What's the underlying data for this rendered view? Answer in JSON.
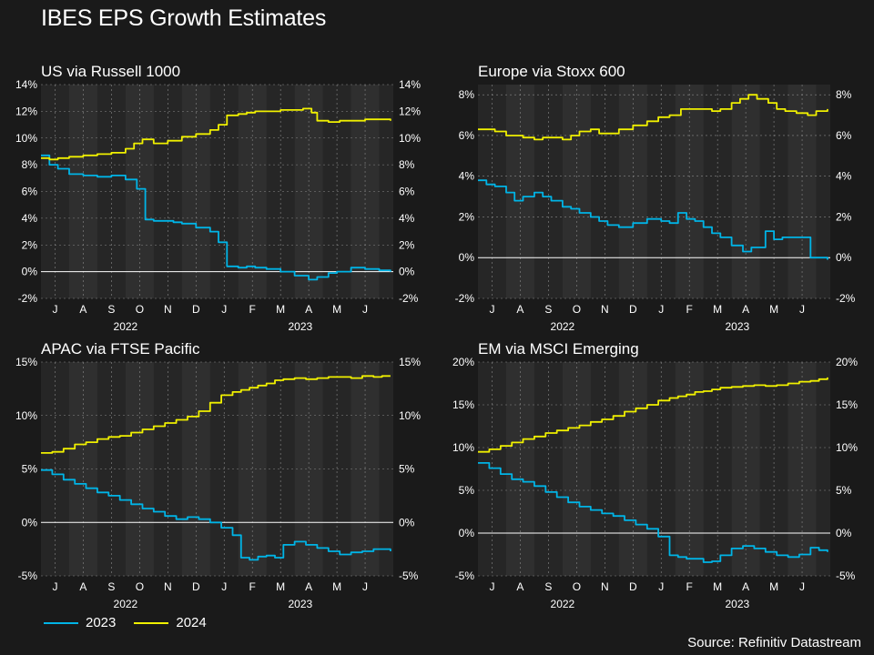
{
  "title": "IBES EPS Growth Estimates",
  "source": "Source: Refinitiv Datastream",
  "colors": {
    "s2023": "#00b4e6",
    "s2024": "#f0f000",
    "background": "#1a1a1a",
    "plot_bg": "#262626",
    "band": "#2f2f2f",
    "grid": "#8a8a8a",
    "zero_line": "#ffffff"
  },
  "legend": [
    {
      "name": "2023",
      "color": "#00b4e6"
    },
    {
      "name": "2024",
      "color": "#f0f000"
    }
  ],
  "chart_data": [
    {
      "type": "line",
      "title": "US via Russell 1000",
      "x_months": [
        "J",
        "A",
        "S",
        "O",
        "N",
        "D",
        "J",
        "F",
        "M",
        "A",
        "M",
        "J"
      ],
      "x_years": [
        "2022",
        "2023"
      ],
      "x_range": [
        0,
        12.5
      ],
      "ylim": [
        -2,
        14
      ],
      "yticks": [
        "14%",
        "12%",
        "10%",
        "8%",
        "6%",
        "4%",
        "2%",
        "0%",
        "-2%"
      ],
      "grid": true,
      "series": [
        {
          "name": "2023",
          "x": [
            0,
            0.3,
            0.6,
            1,
            1.5,
            2,
            2.5,
            3,
            3.4,
            3.7,
            4,
            4.3,
            4.7,
            5,
            5.5,
            6,
            6.3,
            6.6,
            7,
            7.3,
            7.6,
            8,
            8.5,
            9,
            9.5,
            9.8,
            10.2,
            10.5,
            11,
            11.5,
            12,
            12.4
          ],
          "y": [
            8.7,
            8.0,
            7.7,
            7.3,
            7.2,
            7.1,
            7.2,
            6.9,
            6.2,
            3.9,
            3.8,
            3.8,
            3.7,
            3.6,
            3.3,
            3.0,
            2.2,
            0.4,
            0.3,
            0.4,
            0.3,
            0.2,
            0.0,
            -0.3,
            -0.6,
            -0.4,
            -0.1,
            0.0,
            0.3,
            0.2,
            0.1,
            0.0
          ]
        },
        {
          "name": "2024",
          "x": [
            0,
            0.3,
            0.6,
            1,
            1.5,
            2,
            2.5,
            3,
            3.3,
            3.6,
            4,
            4.5,
            5,
            5.5,
            6,
            6.3,
            6.6,
            7,
            7.3,
            7.6,
            8,
            8.5,
            9,
            9.3,
            9.6,
            9.8,
            10.2,
            10.6,
            11,
            11.5,
            12,
            12.4
          ],
          "y": [
            8.5,
            8.4,
            8.5,
            8.6,
            8.7,
            8.8,
            8.9,
            9.2,
            9.6,
            9.9,
            9.6,
            9.8,
            10.1,
            10.3,
            10.6,
            11.0,
            11.7,
            11.8,
            11.9,
            12.0,
            12.0,
            12.1,
            12.1,
            12.2,
            11.9,
            11.3,
            11.2,
            11.3,
            11.3,
            11.4,
            11.4,
            11.3
          ]
        }
      ]
    },
    {
      "type": "line",
      "title": "Europe via Stoxx 600",
      "x_months": [
        "J",
        "A",
        "S",
        "O",
        "N",
        "D",
        "J",
        "F",
        "M",
        "A",
        "M",
        "J"
      ],
      "x_years": [
        "2022",
        "2023"
      ],
      "x_range": [
        0,
        12.5
      ],
      "ylim": [
        -2,
        8.5
      ],
      "yticks": [
        "8%",
        "6%",
        "4%",
        "2%",
        "0%",
        "-2%"
      ],
      "grid": true,
      "series": [
        {
          "name": "2023",
          "x": [
            0,
            0.3,
            0.6,
            1,
            1.3,
            1.6,
            2,
            2.3,
            2.6,
            3,
            3.3,
            3.6,
            4,
            4.3,
            4.6,
            5,
            5.5,
            6,
            6.5,
            6.8,
            7.1,
            7.4,
            7.7,
            8,
            8.3,
            8.6,
            9,
            9.4,
            9.7,
            10.2,
            10.5,
            10.8,
            11.2,
            11.5,
            11.8,
            12.2,
            12.4
          ],
          "y": [
            3.8,
            3.6,
            3.5,
            3.2,
            2.8,
            3.0,
            3.2,
            3.0,
            2.8,
            2.5,
            2.4,
            2.2,
            2.0,
            1.8,
            1.6,
            1.5,
            1.7,
            1.9,
            1.8,
            1.7,
            2.2,
            1.9,
            1.8,
            1.5,
            1.2,
            1.0,
            0.6,
            0.3,
            0.5,
            1.3,
            0.9,
            1.0,
            1.0,
            1.0,
            0.0,
            0.0,
            -0.1
          ]
        },
        {
          "name": "2024",
          "x": [
            0,
            0.3,
            0.6,
            1,
            1.3,
            1.6,
            2,
            2.3,
            2.6,
            3,
            3.3,
            3.6,
            4,
            4.3,
            4.6,
            5,
            5.5,
            6,
            6.4,
            6.8,
            7.2,
            7.6,
            8,
            8.3,
            8.6,
            9,
            9.3,
            9.6,
            9.9,
            10.3,
            10.6,
            10.9,
            11.3,
            11.7,
            12,
            12.4
          ],
          "y": [
            6.3,
            6.3,
            6.2,
            6.0,
            6.0,
            5.9,
            5.8,
            5.9,
            5.9,
            5.8,
            6.0,
            6.2,
            6.3,
            6.1,
            6.1,
            6.3,
            6.5,
            6.7,
            6.9,
            7.0,
            7.3,
            7.3,
            7.3,
            7.2,
            7.3,
            7.6,
            7.8,
            8.0,
            7.8,
            7.6,
            7.3,
            7.2,
            7.1,
            7.0,
            7.2,
            7.3
          ]
        }
      ]
    },
    {
      "type": "line",
      "title": "APAC via FTSE Pacific",
      "x_months": [
        "J",
        "A",
        "S",
        "O",
        "N",
        "D",
        "J",
        "F",
        "M",
        "A",
        "M",
        "J"
      ],
      "x_years": [
        "2022",
        "2023"
      ],
      "x_range": [
        0,
        12.5
      ],
      "ylim": [
        -5,
        15
      ],
      "yticks": [
        "15%",
        "10%",
        "5%",
        "0%",
        "-5%"
      ],
      "grid": true,
      "series": [
        {
          "name": "2023",
          "x": [
            0,
            0.4,
            0.8,
            1.2,
            1.6,
            2,
            2.4,
            2.8,
            3.2,
            3.6,
            4,
            4.4,
            4.8,
            5.2,
            5.6,
            6,
            6.4,
            6.8,
            7.1,
            7.4,
            7.7,
            8,
            8.3,
            8.6,
            9,
            9.4,
            9.8,
            10.2,
            10.6,
            11,
            11.4,
            11.8,
            12.1,
            12.4
          ],
          "y": [
            4.9,
            4.5,
            4.0,
            3.6,
            3.2,
            2.8,
            2.5,
            2.1,
            1.7,
            1.3,
            1.0,
            0.6,
            0.3,
            0.5,
            0.3,
            0.0,
            -0.5,
            -1.2,
            -3.3,
            -3.5,
            -3.2,
            -3.1,
            -3.3,
            -2.1,
            -1.8,
            -2.1,
            -2.4,
            -2.7,
            -3.0,
            -2.8,
            -2.7,
            -2.5,
            -2.5,
            -2.7
          ]
        },
        {
          "name": "2024",
          "x": [
            0,
            0.4,
            0.8,
            1.2,
            1.6,
            2,
            2.4,
            2.8,
            3.2,
            3.6,
            4,
            4.4,
            4.8,
            5.2,
            5.6,
            6,
            6.4,
            6.8,
            7.1,
            7.4,
            7.7,
            8,
            8.3,
            8.6,
            9,
            9.4,
            9.8,
            10.2,
            10.6,
            11,
            11.4,
            11.8,
            12.1,
            12.4
          ],
          "y": [
            6.5,
            6.6,
            6.9,
            7.3,
            7.5,
            7.8,
            8.0,
            8.1,
            8.4,
            8.7,
            9.0,
            9.3,
            9.6,
            9.9,
            10.4,
            11.2,
            11.9,
            12.2,
            12.4,
            12.6,
            12.8,
            13.0,
            13.3,
            13.4,
            13.5,
            13.4,
            13.5,
            13.6,
            13.6,
            13.5,
            13.7,
            13.6,
            13.7,
            13.7
          ]
        }
      ]
    },
    {
      "type": "line",
      "title": "EM via MSCI Emerging",
      "x_months": [
        "J",
        "A",
        "S",
        "O",
        "N",
        "D",
        "J",
        "F",
        "M",
        "A",
        "M",
        "J"
      ],
      "x_years": [
        "2022",
        "2023"
      ],
      "x_range": [
        0,
        12.5
      ],
      "ylim": [
        -5,
        20
      ],
      "yticks": [
        "20%",
        "15%",
        "10%",
        "5%",
        "0%",
        "-5%"
      ],
      "grid": true,
      "series": [
        {
          "name": "2023",
          "x": [
            0,
            0.4,
            0.8,
            1.2,
            1.6,
            2,
            2.4,
            2.8,
            3.2,
            3.6,
            4,
            4.4,
            4.8,
            5.2,
            5.6,
            6,
            6.4,
            6.8,
            7.1,
            7.4,
            7.7,
            8,
            8.3,
            8.6,
            9,
            9.4,
            9.8,
            10.2,
            10.6,
            11,
            11.4,
            11.8,
            12.1,
            12.4
          ],
          "y": [
            8.2,
            7.6,
            6.9,
            6.3,
            6.0,
            5.5,
            4.8,
            4.2,
            3.6,
            3.1,
            2.7,
            2.3,
            2.0,
            1.5,
            1.0,
            0.5,
            -0.4,
            -2.6,
            -2.8,
            -3.0,
            -3.0,
            -3.4,
            -3.3,
            -2.6,
            -1.8,
            -1.5,
            -1.8,
            -2.2,
            -2.6,
            -2.8,
            -2.5,
            -1.7,
            -2.0,
            -2.2
          ]
        },
        {
          "name": "2024",
          "x": [
            0,
            0.4,
            0.8,
            1.2,
            1.6,
            2,
            2.4,
            2.8,
            3.2,
            3.6,
            4,
            4.4,
            4.8,
            5.2,
            5.6,
            6,
            6.4,
            6.8,
            7.1,
            7.4,
            7.7,
            8,
            8.3,
            8.6,
            9,
            9.4,
            9.8,
            10.2,
            10.6,
            11,
            11.4,
            11.8,
            12.1,
            12.4
          ],
          "y": [
            9.5,
            9.8,
            10.2,
            10.6,
            11.0,
            11.3,
            11.7,
            12.0,
            12.3,
            12.6,
            13.0,
            13.3,
            13.7,
            14.2,
            14.6,
            15.0,
            15.5,
            15.8,
            16.0,
            16.2,
            16.5,
            16.6,
            16.8,
            17.0,
            17.1,
            17.2,
            17.3,
            17.2,
            17.3,
            17.5,
            17.7,
            17.8,
            18.0,
            18.2
          ]
        }
      ]
    }
  ]
}
